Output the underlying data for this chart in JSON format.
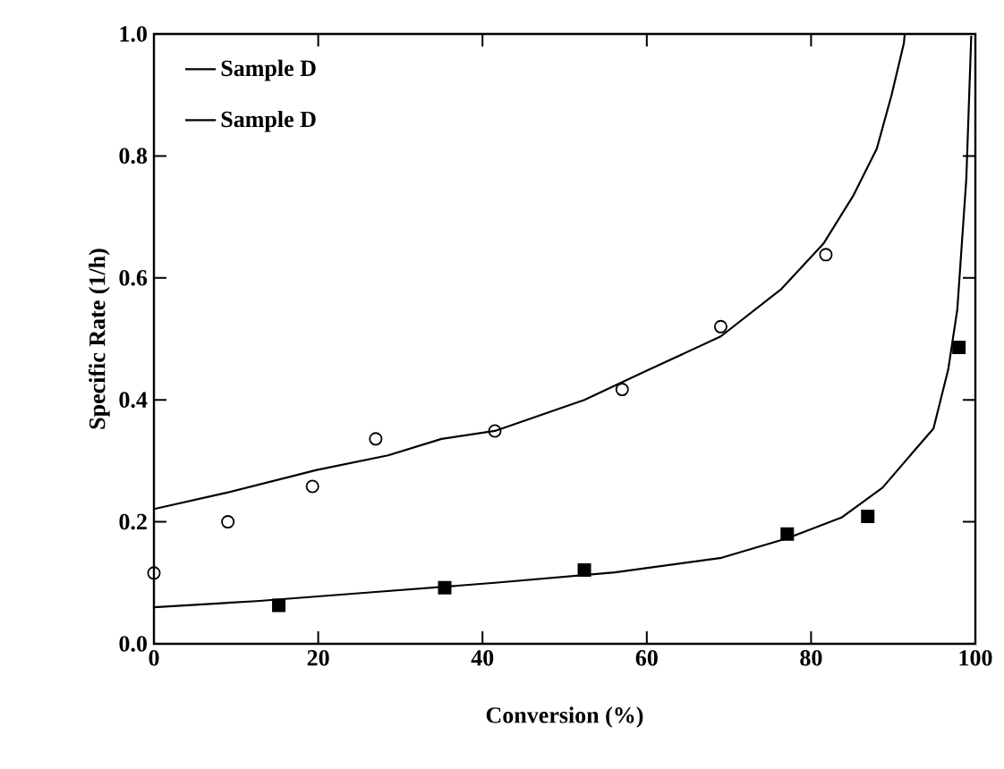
{
  "chart_data": {
    "type": "scatter",
    "xlabel": "Conversion (%)",
    "ylabel": "Specific Rate (1/h)",
    "xlim": [
      0,
      100
    ],
    "ylim": [
      0,
      1.0
    ],
    "xticks": [
      0,
      20,
      40,
      60,
      80,
      100
    ],
    "yticks": [
      {
        "value": 0,
        "label": "0.0"
      },
      {
        "value": 0.2,
        "label": "0.2"
      },
      {
        "value": 0.4,
        "label": "0.4"
      },
      {
        "value": 0.6,
        "label": "0.6"
      },
      {
        "value": 0.8,
        "label": "0.8"
      },
      {
        "value": 1.0,
        "label": "1.0"
      }
    ],
    "legend": "top left",
    "grid": false,
    "series": [
      {
        "marker": "circle",
        "color": "#000000",
        "x": [
          0.0,
          9.0,
          19.3,
          27.0,
          41.5,
          57.0,
          69.0,
          81.8
        ],
        "values": [
          0.116,
          0.2,
          0.258,
          0.336,
          0.349,
          0.417,
          0.52,
          0.638
        ]
      },
      {
        "type": "line",
        "name": "Sample D",
        "color": "#000000",
        "x": [
          0,
          8.9,
          19.8,
          28.5,
          35.0,
          41.5,
          52.4,
          59.7,
          69.0,
          76.4,
          81.5,
          85.1,
          88.0,
          89.8,
          91.3,
          91.4
        ],
        "values": [
          0.221,
          0.248,
          0.285,
          0.309,
          0.336,
          0.349,
          0.4,
          0.446,
          0.504,
          0.582,
          0.656,
          0.734,
          0.812,
          0.9,
          0.985,
          1.0
        ]
      },
      {
        "marker": "square",
        "color": "#000000",
        "x": [
          15.2,
          35.4,
          52.4,
          77.1,
          86.9,
          98.0
        ],
        "values": [
          0.063,
          0.092,
          0.121,
          0.18,
          0.209,
          0.486
        ]
      },
      {
        "type": "line",
        "name": "Sample D",
        "color": "#000000",
        "x": [
          0,
          12.5,
          27.0,
          41.5,
          56.1,
          69.1,
          77.1,
          83.7,
          88.7,
          92.4,
          94.9,
          96.7,
          97.8,
          98.9,
          99.5
        ],
        "values": [
          0.06,
          0.07,
          0.085,
          0.1,
          0.117,
          0.141,
          0.173,
          0.207,
          0.256,
          0.314,
          0.353,
          0.45,
          0.548,
          0.763,
          0.997
        ]
      }
    ]
  }
}
